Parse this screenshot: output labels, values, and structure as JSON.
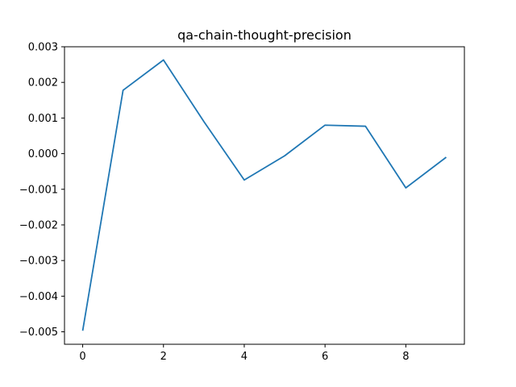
{
  "chart_data": {
    "type": "line",
    "title": "qa-chain-thought-precision",
    "xlabel": "",
    "ylabel": "",
    "xlim": [
      -0.45,
      9.45
    ],
    "ylim": [
      -0.00535,
      0.003
    ],
    "xticks": [
      0,
      2,
      4,
      6,
      8
    ],
    "xtick_labels": [
      "0",
      "2",
      "4",
      "6",
      "8"
    ],
    "yticks": [
      0.003,
      0.002,
      0.001,
      0.0,
      -0.001,
      -0.002,
      -0.003,
      -0.004,
      -0.005
    ],
    "ytick_labels": [
      "0.003",
      "0.002",
      "0.001",
      "0.000",
      "−0.001",
      "−0.002",
      "−0.003",
      "−0.004",
      "−0.005"
    ],
    "grid": false,
    "legend": "none",
    "series": [
      {
        "color": "#1f77b4",
        "x": [
          0,
          1,
          2,
          3,
          4,
          5,
          6,
          7,
          8,
          9
        ],
        "values": [
          -0.00497,
          0.00178,
          0.00263,
          0.0009,
          -0.00074,
          -6e-05,
          0.0008,
          0.00077,
          -0.00096,
          -0.0001
        ]
      }
    ]
  }
}
